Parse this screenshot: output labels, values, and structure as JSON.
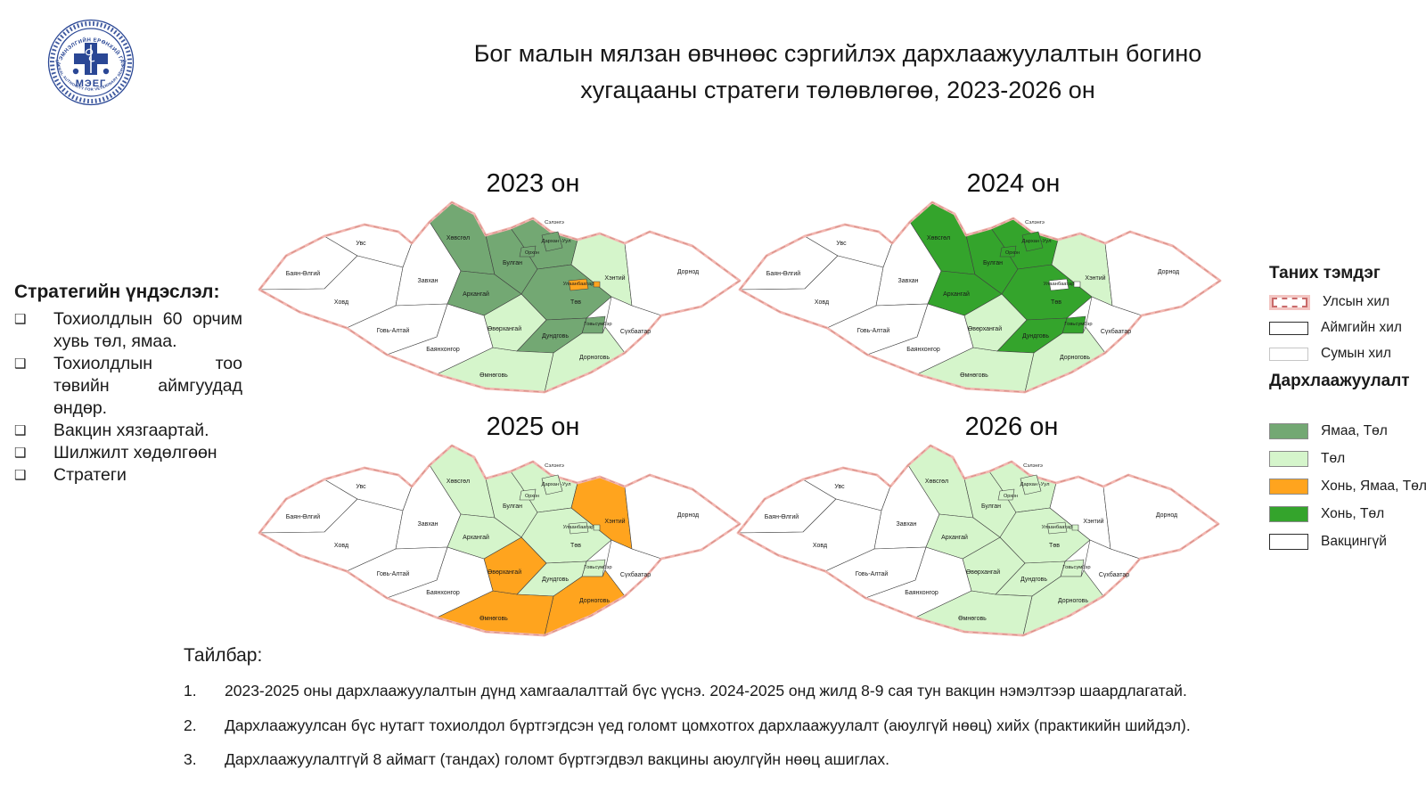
{
  "header": {
    "title_line1": "Бог малын мялзан өвчнөөс сэргийлэх дархлаажуулалтын богино",
    "title_line2": "хугацааны стратеги төлөвлөгөө, 2023-2026 он",
    "logo": {
      "acronym": "МЭЕГ",
      "arc_top": "МАЛ ЭМНЭЛГИЙН ЕРӨНХИЙ ГАЗАР",
      "arc_bottom": "GENERAL AUTHORITY FOR VETERINARY SERVICES",
      "color": "#2a4795"
    }
  },
  "sidebar": {
    "heading": "Стратегийн үндэслэл:",
    "bullet": "❑",
    "items": [
      "Тохиолдлын 60 орчим хувь төл, ямаа.",
      "Тохиолдлын тоо төвийн аймгуудад өндөр.",
      "Вакцин хязгаартай.",
      "Шилжилт хөдөлгөөн",
      "Стратеги"
    ]
  },
  "aimags": {
    "bayan_olgii": "Баян-Өлгий",
    "uvs": "Увс",
    "khovd": "Ховд",
    "zavkhan": "Завхан",
    "govi_altai": "Говь-Алтай",
    "bayankhongor": "Баянхонгор",
    "khovsgol": "Хөвсгөл",
    "arkhangai": "Архангай",
    "bulgan": "Булган",
    "orkhon": "Орхон",
    "selenge": "Сэлэнгэ",
    "darkhan_uul": "Дархан -Уул",
    "ulaanbaatar": "Улаанбаатар",
    "tov": "Төв",
    "khentii": "Хэнтий",
    "dornod": "Дорнод",
    "sukhbaatar": "Сүхбаатар",
    "govisumber": "Говьсүмбэр",
    "dundgovi": "Дундговь",
    "dornogovi": "Дорноговь",
    "omnogovi": "Өмнөговь",
    "ovorkhangai": "Өвөрхангай"
  },
  "palette": {
    "yamaa_tol": "#73A873",
    "tol": "#D5F5CB",
    "khon_yamaa_tol": "#FFA41E",
    "khon_tol": "#34A42C",
    "none": "#FFFFFF"
  },
  "map_border_colors": {
    "country_band": "#F2B6B0",
    "country_dash": "#D78F88",
    "aimag_line": "#404040"
  },
  "maps": [
    {
      "year_label": "2023 он",
      "fills": {
        "khovsgol": "yamaa_tol",
        "bulgan": "yamaa_tol",
        "arkhangai": "yamaa_tol",
        "selenge": "yamaa_tol",
        "darkhan_uul": "yamaa_tol",
        "orkhon": "yamaa_tol",
        "tov": "yamaa_tol",
        "dundgovi": "yamaa_tol",
        "govisumber": "yamaa_tol",
        "ulaanbaatar": "khon_yamaa_tol",
        "baganuur": "khon_yamaa_tol",
        "khentii": "tol",
        "ovorkhangai": "tol",
        "omnogovi": "tol",
        "dornogovi": "tol"
      }
    },
    {
      "year_label": "2024 он",
      "fills": {
        "khovsgol": "khon_tol",
        "bulgan": "khon_tol",
        "arkhangai": "khon_tol",
        "selenge": "khon_tol",
        "darkhan_uul": "khon_tol",
        "orkhon": "khon_tol",
        "tov": "khon_tol",
        "dundgovi": "khon_tol",
        "govisumber": "khon_tol",
        "ulaanbaatar": "none",
        "baganuur": "none",
        "khentii": "tol",
        "ovorkhangai": "tol",
        "omnogovi": "tol",
        "dornogovi": "tol"
      }
    },
    {
      "year_label": "2025 он",
      "fills": {
        "khovsgol": "tol",
        "bulgan": "tol",
        "arkhangai": "tol",
        "selenge": "tol",
        "darkhan_uul": "tol",
        "orkhon": "tol",
        "tov": "tol",
        "dundgovi": "tol",
        "govisumber": "tol",
        "ulaanbaatar": "tol",
        "baganuur": "tol",
        "khentii": "khon_yamaa_tol",
        "ovorkhangai": "khon_yamaa_tol",
        "omnogovi": "khon_yamaa_tol",
        "dornogovi": "khon_yamaa_tol"
      }
    },
    {
      "year_label": "2026 он",
      "fills": {
        "khovsgol": "tol",
        "bulgan": "tol",
        "arkhangai": "tol",
        "selenge": "tol",
        "darkhan_uul": "tol",
        "orkhon": "tol",
        "tov": "tol",
        "dundgovi": "tol",
        "govisumber": "tol",
        "ulaanbaatar": "tol",
        "baganuur": "tol",
        "ovorkhangai": "tol",
        "omnogovi": "tol",
        "dornogovi": "tol",
        "khentii": "none"
      }
    }
  ],
  "legend": {
    "border_heading": "Таних тэмдэг",
    "border_items": [
      {
        "id": "ulsyn",
        "label": "Улсын хил"
      },
      {
        "id": "aimgiin",
        "label": "Аймгийн хил"
      },
      {
        "id": "sumyn",
        "label": "Сумын хил"
      }
    ],
    "fill_heading": "Дархлаажуулалт",
    "fill_items": [
      {
        "key": "yamaa_tol",
        "label": "Ямаа, Төл"
      },
      {
        "key": "tol",
        "label": "Төл"
      },
      {
        "key": "khon_yamaa_tol",
        "label": "Хонь, Ямаа, Төл"
      },
      {
        "key": "khon_tol",
        "label": "Хонь, Төл"
      },
      {
        "key": "none",
        "label": "Вакцингүй"
      }
    ]
  },
  "notes": {
    "heading": "Тайлбар:",
    "items": [
      {
        "num": "1.",
        "text": "2023-2025 оны дархлаажуулалтын дүнд хамгаалалттай бүс үүснэ. 2024-2025 онд жилд 8-9 сая тун вакцин нэмэлтээр шаардлагатай."
      },
      {
        "num": "2.",
        "text": "Дархлаажуулсан бүс нутагт тохиолдол бүртгэгдсэн үед голомт цомхотгох дархлаажуулалт (аюулгүй нөөц) хийх (практикийн шийдэл)."
      },
      {
        "num": "3.",
        "text": "Дархлаажуулалтгүй 8 аймагт (тандах) голомт бүртгэгдвэл вакцины аюулгүйн нөөц ашиглах."
      }
    ]
  }
}
